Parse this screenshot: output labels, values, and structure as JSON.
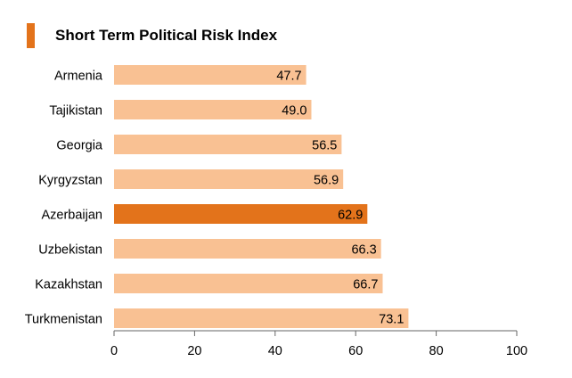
{
  "title": "Short Term Political Risk Index",
  "colors": {
    "accent": "#E3731B",
    "bar": "#F9C193",
    "highlight": "#E3731B",
    "axis": "#666666",
    "text": "#000000"
  },
  "chart_data": {
    "type": "bar",
    "orientation": "horizontal",
    "title": "Short Term Political Risk Index",
    "categories": [
      "Armenia",
      "Tajikistan",
      "Georgia",
      "Kyrgyzstan",
      "Azerbaijan",
      "Uzbekistan",
      "Kazakhstan",
      "Turkmenistan"
    ],
    "values": [
      47.7,
      49.0,
      56.5,
      56.9,
      62.9,
      66.3,
      66.7,
      73.1
    ],
    "value_labels": [
      "47.7",
      "49.0",
      "56.5",
      "56.9",
      "62.9",
      "66.3",
      "66.7",
      "73.1"
    ],
    "highlight_category": "Azerbaijan",
    "xlim": [
      0,
      100
    ],
    "xticks": [
      0,
      20,
      40,
      60,
      80,
      100
    ],
    "xlabel": "",
    "ylabel": "",
    "grid": false,
    "legend": "none"
  }
}
